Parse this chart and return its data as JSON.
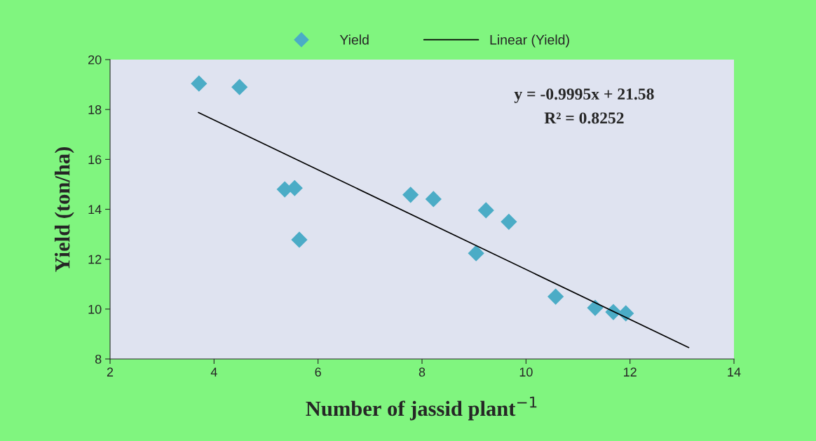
{
  "chart_data": {
    "type": "scatter",
    "xlabel": "Number of jassid plant$^{−1}$",
    "ylabel": "Yield (ton/ha)",
    "annotations": [
      "y = -0.9995x + 21.58",
      "R² = 0.8252"
    ],
    "series": [
      {
        "name": "Yield",
        "color": "#4bacc6",
        "marker": "diamond",
        "x": [
          3.71,
          4.49,
          5.36,
          5.55,
          5.64,
          7.78,
          8.22,
          9.23,
          9.04,
          9.67,
          10.57,
          11.33,
          11.68,
          11.92
        ],
        "values": [
          19.04,
          18.9,
          14.8,
          14.85,
          12.78,
          14.58,
          14.41,
          13.96,
          12.24,
          13.5,
          10.5,
          10.05,
          9.88,
          9.83
        ]
      },
      {
        "name": "Linear (Yield)",
        "type": "line",
        "color": "#000000",
        "marker": "none",
        "line_style": "solid",
        "x": [
          3.7,
          13.13
        ],
        "values": [
          17.88,
          8.46
        ]
      }
    ],
    "xlim": [
      2,
      14
    ],
    "xticks": [
      2,
      4,
      6,
      8,
      10,
      12,
      14
    ],
    "ylim": [
      8,
      20
    ],
    "yticks": [
      8,
      10,
      12,
      14,
      16,
      18,
      20
    ],
    "grid": false,
    "legend": "top"
  }
}
